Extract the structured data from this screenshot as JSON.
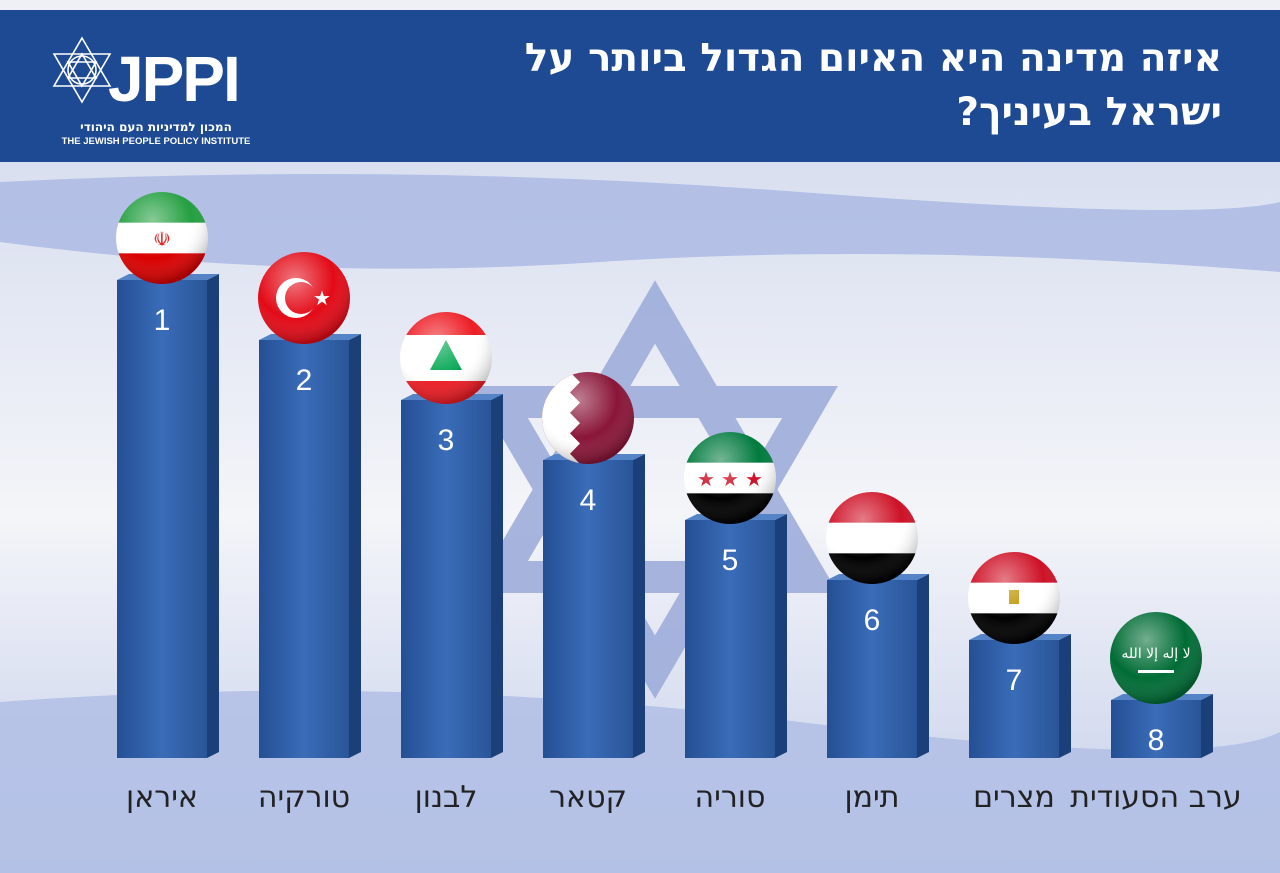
{
  "header": {
    "title_line1": "איזה מדינה היא האיום הגדול ביותר על",
    "title_line2": "ישראל בעיניך?",
    "logo": {
      "name": "JPPI",
      "hebrew": "המכון למדיניות העם היהודי",
      "english": "THE JEWISH PEOPLE POLICY INSTITUTE"
    }
  },
  "colors": {
    "header": "#1d4a93",
    "bar": "#2f5ea8",
    "bar_dark": "#1f467f",
    "flag_blue": "#8fa3d9"
  },
  "chart_data": {
    "type": "bar",
    "title": "איזה מדינה היא האיום הגדול ביותר על ישראל בעיניך?",
    "categories": [
      "איראן",
      "טורקיה",
      "לבנון",
      "קטאר",
      "סוריה",
      "תימן",
      "מצרים",
      "ערב הסעודית"
    ],
    "values": [
      1,
      2,
      3,
      4,
      5,
      6,
      7,
      8
    ],
    "value_meaning": "rank",
    "flags": [
      "iran",
      "turkey",
      "lebanon",
      "qatar",
      "syria",
      "yemen",
      "egypt",
      "saudi-arabia"
    ],
    "grid": false,
    "legend": "none"
  }
}
